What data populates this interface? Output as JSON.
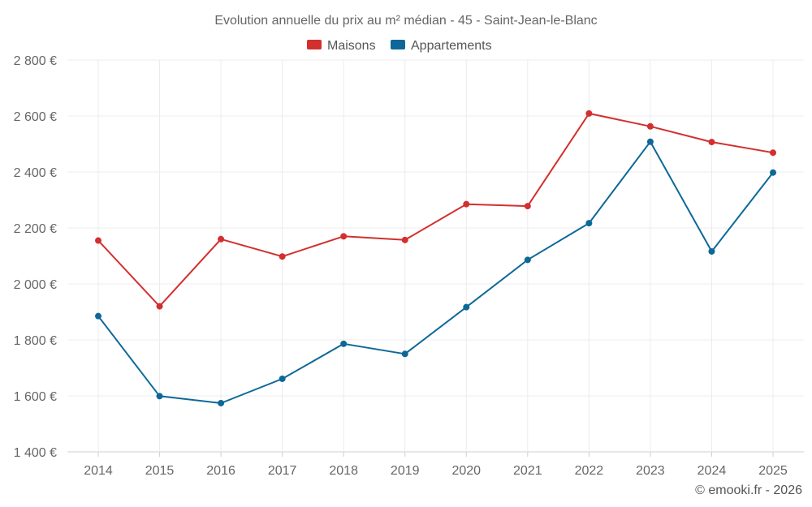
{
  "chart_data": {
    "type": "line",
    "title": "Evolution annuelle du prix au m² médian - 45 - Saint-Jean-le-Blanc",
    "categories": [
      "2014",
      "2015",
      "2016",
      "2017",
      "2018",
      "2019",
      "2020",
      "2021",
      "2022",
      "2023",
      "2024",
      "2025"
    ],
    "series": [
      {
        "name": "Maisons",
        "color": "#d32f2f",
        "values": [
          2155,
          1920,
          2160,
          2098,
          2170,
          2157,
          2285,
          2278,
          2609,
          2563,
          2507,
          2469
        ]
      },
      {
        "name": "Appartements",
        "color": "#0d6898",
        "values": [
          1885,
          1599,
          1574,
          1661,
          1786,
          1750,
          1917,
          2086,
          2217,
          2508,
          2116,
          2398
        ]
      }
    ],
    "ylim": [
      1400,
      2800
    ],
    "yticks": [
      1400,
      1600,
      1800,
      2000,
      2200,
      2400,
      2600,
      2800
    ],
    "ytick_labels": [
      "1 400 €",
      "1 600 €",
      "1 800 €",
      "2 000 €",
      "2 200 €",
      "2 400 €",
      "2 600 €",
      "2 800 €"
    ],
    "xlabel": "",
    "ylabel": "",
    "grid": true,
    "legend_position": "top-center"
  },
  "credit": "© emooki.fr - 2026"
}
